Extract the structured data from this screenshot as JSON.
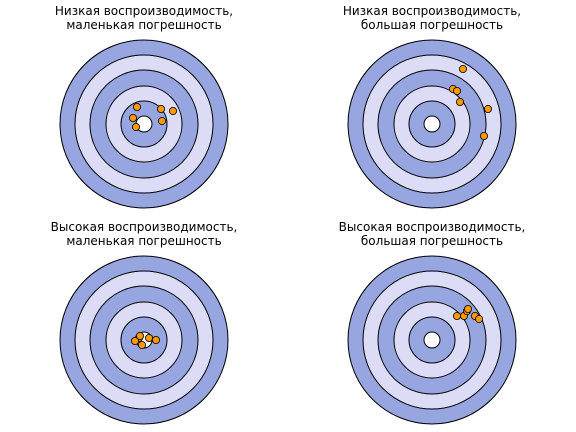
{
  "colors": {
    "ring_dark": "#97a6e1",
    "ring_light": "#dcdcf7",
    "center": "#ffffff",
    "outline": "#000000",
    "shot_fill": "#ff9a00"
  },
  "panels": [
    {
      "title_line1": "Низкая воспроизводимость,",
      "title_line2": "маленькая погрешность",
      "shots": [
        [
          -8,
          3
        ],
        [
          -11,
          -6
        ],
        [
          -7,
          -17
        ],
        [
          18,
          -3
        ],
        [
          29,
          -13
        ],
        [
          17,
          -15
        ]
      ]
    },
    {
      "title_line1": "Низкая воспроизводимость,",
      "title_line2": "большая погрешность",
      "shots": [
        [
          21,
          -35
        ],
        [
          25,
          -33
        ],
        [
          28,
          -22
        ],
        [
          56,
          -15
        ],
        [
          52,
          12
        ],
        [
          31,
          -55
        ]
      ]
    },
    {
      "title_line1": "Высокая воспроизводимость,",
      "title_line2": "маленькая погрешность",
      "shots": [
        [
          -5,
          -2
        ],
        [
          -9,
          1
        ],
        [
          -2,
          5
        ],
        [
          5,
          -2
        ],
        [
          12,
          0
        ],
        [
          -4,
          -4
        ]
      ]
    },
    {
      "title_line1": "Высокая воспроизводимость,",
      "title_line2": "большая погрешность",
      "shots": [
        [
          25,
          -24
        ],
        [
          32,
          -24
        ],
        [
          43,
          -24
        ],
        [
          47,
          -21
        ],
        [
          35,
          -29
        ],
        [
          36,
          -31
        ]
      ]
    }
  ]
}
